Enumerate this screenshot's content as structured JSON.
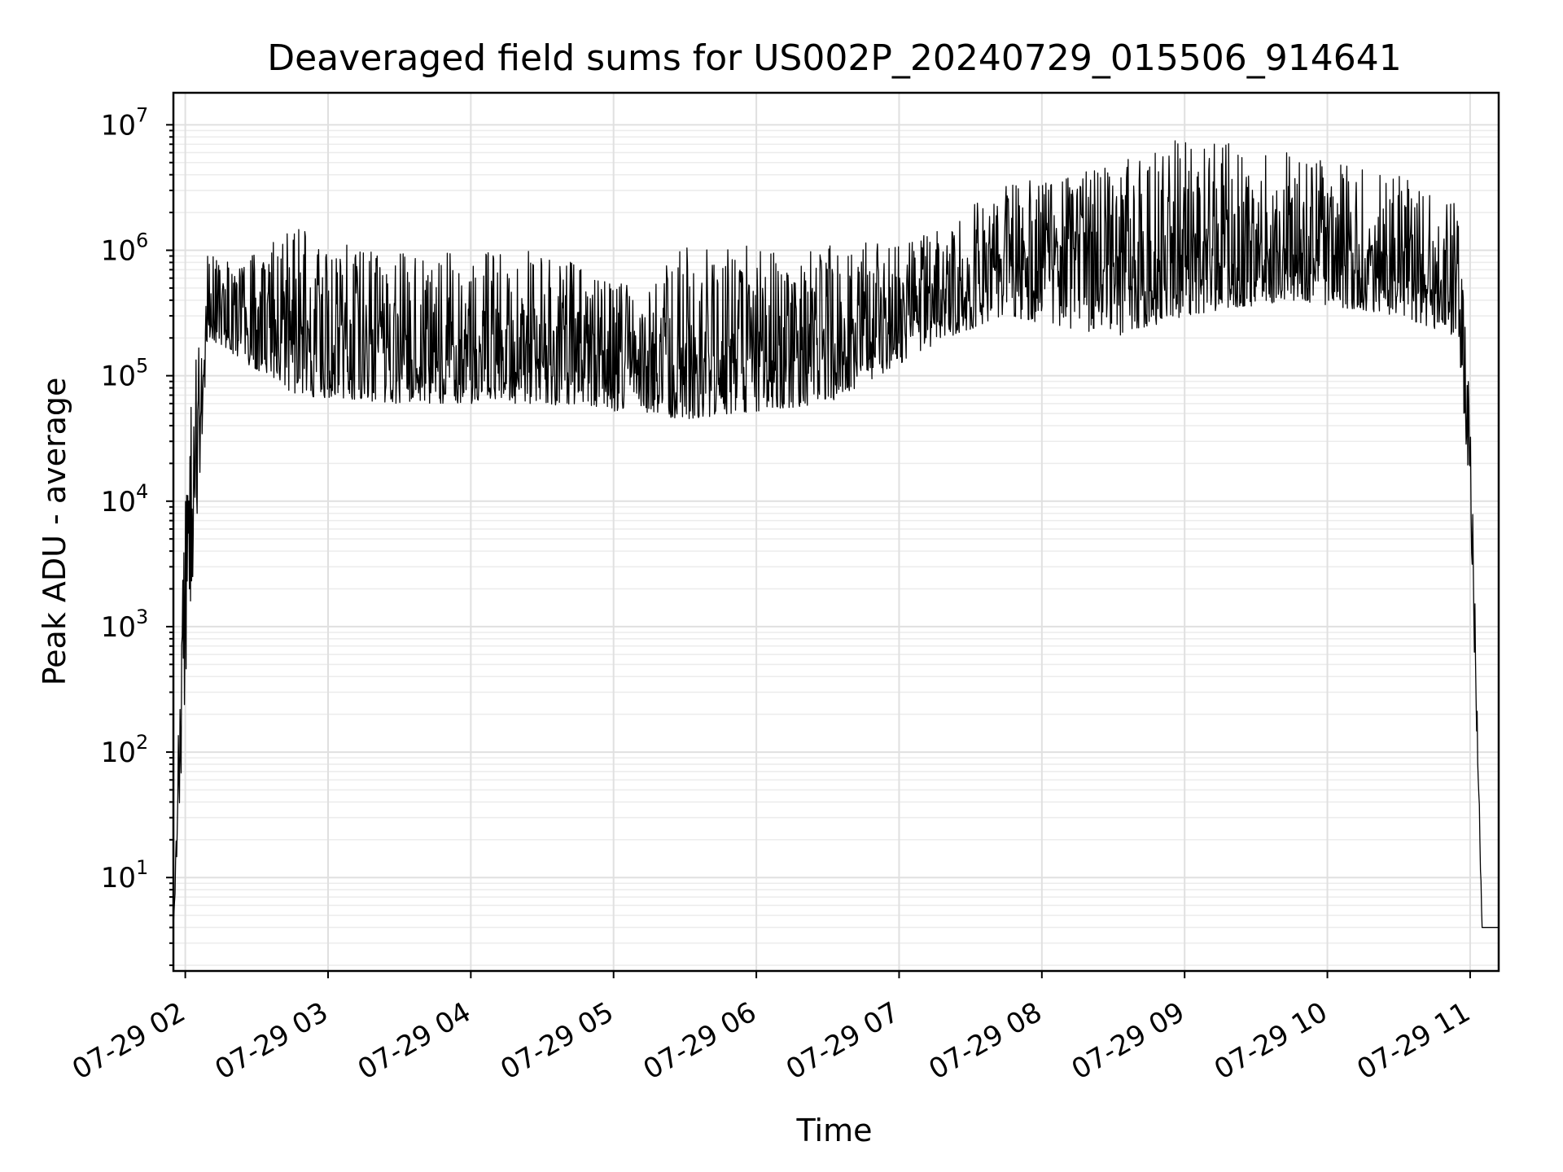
{
  "chart_data": {
    "type": "line",
    "title": "Deaveraged field sums for US002P_20240729_015506_914641",
    "xlabel": "Time",
    "ylabel": "Peak ADU - average",
    "yscale": "log",
    "ylim": [
      1.8,
      18000000.0
    ],
    "xlim": [
      "2024-07-29 01:55",
      "2024-07-29 11:12"
    ],
    "grid": true,
    "x_ticks": [
      "07-29 02",
      "07-29 03",
      "07-29 04",
      "07-29 05",
      "07-29 06",
      "07-29 07",
      "07-29 08",
      "07-29 09",
      "07-29 10",
      "07-29 11"
    ],
    "y_ticks": [
      {
        "base": "10",
        "exp": "1"
      },
      {
        "base": "10",
        "exp": "2"
      },
      {
        "base": "10",
        "exp": "3"
      },
      {
        "base": "10",
        "exp": "4"
      },
      {
        "base": "10",
        "exp": "5"
      },
      {
        "base": "10",
        "exp": "6"
      },
      {
        "base": "10",
        "exp": "7"
      }
    ],
    "series_color": "#000000",
    "envelope": {
      "x": [
        "2024-07-29 01:55",
        "2024-07-29 02:00",
        "2024-07-29 02:10",
        "2024-07-29 02:20",
        "2024-07-29 02:45",
        "2024-07-29 03:30",
        "2024-07-29 04:30",
        "2024-07-29 05:10",
        "2024-07-29 05:30",
        "2024-07-29 06:30",
        "2024-07-29 07:20",
        "2024-07-29 07:45",
        "2024-07-29 08:30",
        "2024-07-29 09:00",
        "2024-07-29 09:45",
        "2024-07-29 10:30",
        "2024-07-29 10:55",
        "2024-07-29 11:00",
        "2024-07-29 11:05",
        "2024-07-29 11:12"
      ],
      "low": [
        4,
        300,
        200000,
        150000,
        70000,
        60000,
        60000,
        50000,
        45000,
        60000,
        200000,
        300000,
        200000,
        300000,
        400000,
        300000,
        200000,
        10000,
        4,
        4
      ],
      "high": [
        4,
        30000,
        1200000,
        800000,
        1500000,
        1000000,
        1000000,
        500000,
        1100000,
        1100000,
        1500000,
        4000000,
        5000000,
        8000000,
        6000000,
        4000000,
        3500000,
        100000,
        4,
        4
      ]
    }
  }
}
